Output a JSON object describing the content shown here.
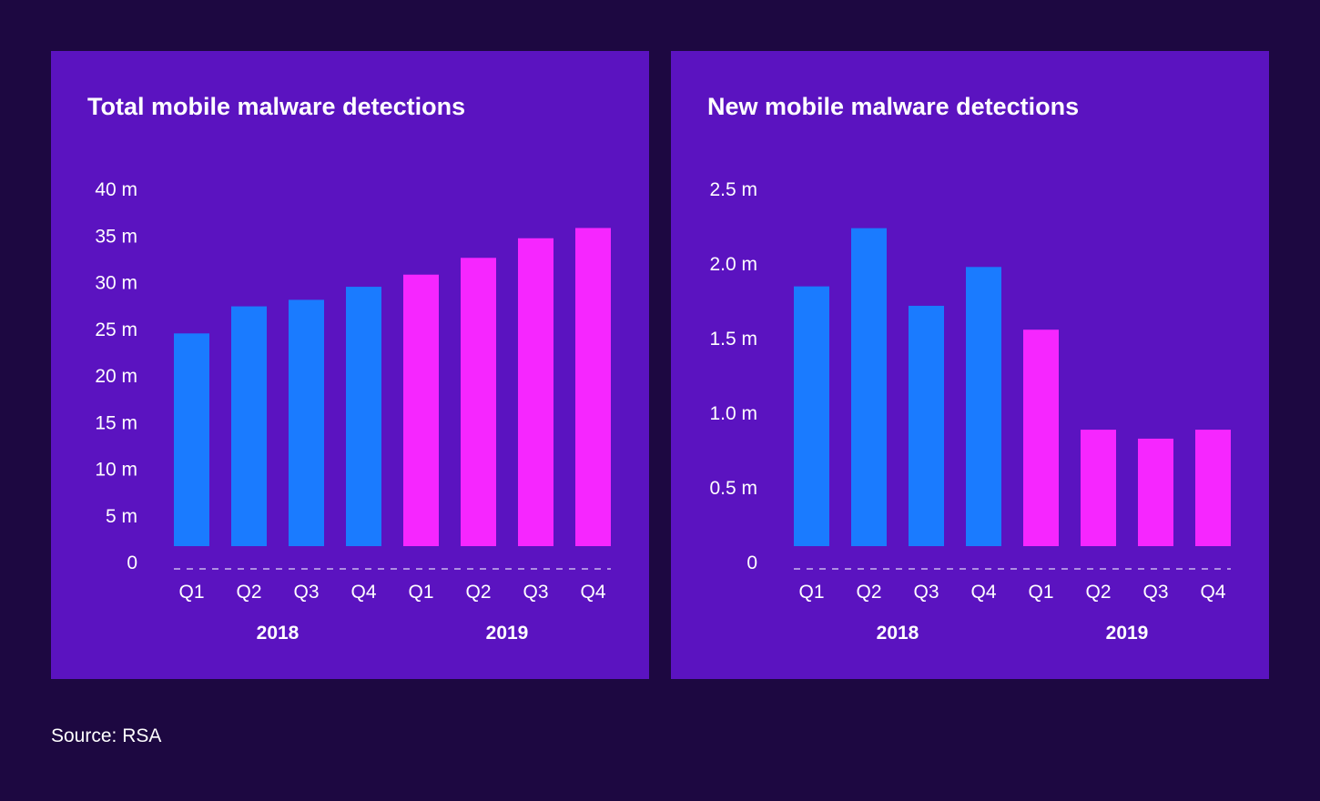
{
  "source_text": "Source: RSA",
  "colors": {
    "background": "#1d0841",
    "panel": "#5b13c0",
    "year_2018": "#1a7bff",
    "year_2019": "#f626ff",
    "text": "#ffffff",
    "baseline": "#c9b8ee"
  },
  "chart_data": [
    {
      "type": "bar",
      "title": "Total mobile malware detections",
      "categories": [
        "Q1",
        "Q2",
        "Q3",
        "Q4",
        "Q1",
        "Q2",
        "Q3",
        "Q4"
      ],
      "groups": [
        {
          "label": "2018",
          "indices": [
            0,
            1,
            2,
            3
          ]
        },
        {
          "label": "2019",
          "indices": [
            4,
            5,
            6,
            7
          ]
        }
      ],
      "values": [
        22.8,
        25.7,
        26.4,
        27.8,
        29.1,
        30.9,
        33.0,
        34.1
      ],
      "group_of_bar": [
        0,
        0,
        0,
        0,
        1,
        1,
        1,
        1
      ],
      "ylim": [
        0,
        40
      ],
      "yticks": [
        0,
        5,
        10,
        15,
        20,
        25,
        30,
        35,
        40
      ],
      "yticklabels": [
        "0",
        "5 m",
        "10 m",
        "15 m",
        "20 m",
        "25 m",
        "30 m",
        "35 m",
        "40 m"
      ],
      "xlabel": "",
      "ylabel": "",
      "grid": false,
      "legend": false
    },
    {
      "type": "bar",
      "title": "New mobile malware detections",
      "categories": [
        "Q1",
        "Q2",
        "Q3",
        "Q4",
        "Q1",
        "Q2",
        "Q3",
        "Q4"
      ],
      "groups": [
        {
          "label": "2018",
          "indices": [
            0,
            1,
            2,
            3
          ]
        },
        {
          "label": "2019",
          "indices": [
            4,
            5,
            6,
            7
          ]
        }
      ],
      "values": [
        1.74,
        2.13,
        1.61,
        1.87,
        1.45,
        0.78,
        0.72,
        0.78
      ],
      "group_of_bar": [
        0,
        0,
        0,
        0,
        1,
        1,
        1,
        1
      ],
      "ylim": [
        0,
        2.5
      ],
      "yticks": [
        0,
        0.5,
        1.0,
        1.5,
        2.0,
        2.5
      ],
      "yticklabels": [
        "0",
        "0.5 m",
        "1.0 m",
        "1.5 m",
        "2.0 m",
        "2.5 m"
      ],
      "xlabel": "",
      "ylabel": "",
      "grid": false,
      "legend": false
    }
  ]
}
